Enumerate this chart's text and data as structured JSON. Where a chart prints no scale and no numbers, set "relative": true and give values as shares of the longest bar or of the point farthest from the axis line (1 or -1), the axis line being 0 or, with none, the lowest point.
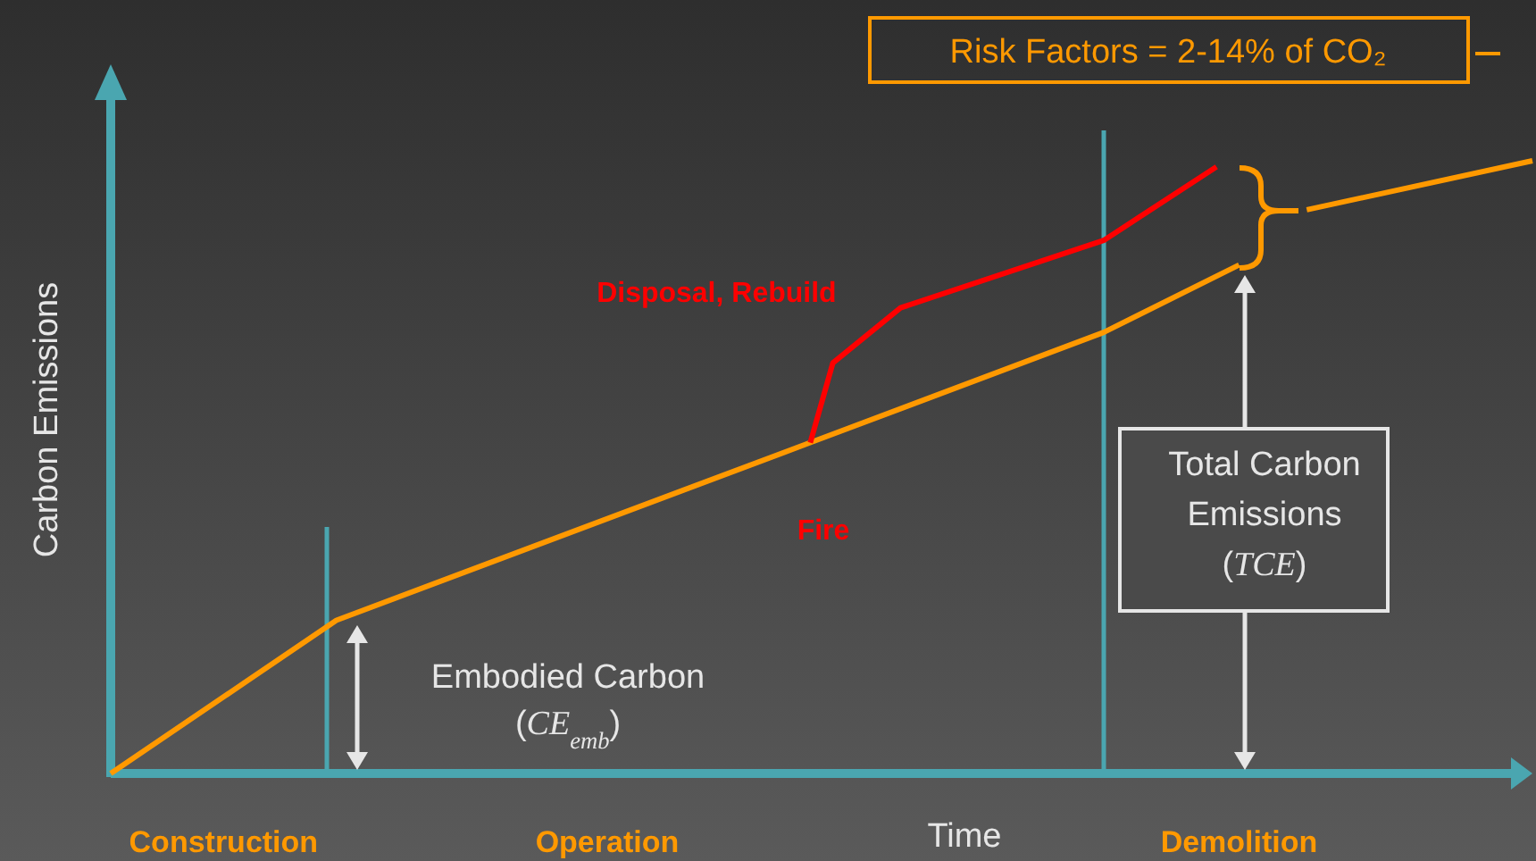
{
  "chart_data": {
    "type": "line",
    "relative": true,
    "xlabel": "Time",
    "ylabel": "Carbon Emissions",
    "categories": [
      null,
      null,
      null,
      null,
      null,
      "Construction",
      null,
      null,
      null,
      null,
      null,
      null,
      null,
      null,
      null,
      null,
      null,
      null,
      null,
      null,
      null,
      null,
      "Operation",
      null,
      null,
      null,
      null,
      null,
      null,
      null,
      null,
      null,
      null,
      null,
      null,
      null,
      null,
      null,
      null,
      null,
      null,
      null,
      null,
      null,
      null,
      null,
      null,
      null,
      null,
      null,
      "Demolition",
      null,
      null,
      null,
      null,
      null,
      null,
      null,
      null,
      null,
      null,
      null,
      null,
      null
    ],
    "series": [
      {
        "color": "#ff9900",
        "values": [
          0,
          null,
          null,
          null,
          null,
          null,
          null,
          null,
          null,
          null,
          0.25,
          null,
          null,
          null,
          null,
          null,
          null,
          null,
          null,
          null,
          null,
          null,
          null,
          null,
          null,
          null,
          null,
          null,
          null,
          null,
          null,
          0.54,
          null,
          null,
          null,
          null,
          null,
          null,
          null,
          null,
          null,
          null,
          null,
          null,
          0.72,
          null,
          null,
          null,
          null,
          null,
          0.83,
          null,
          null,
          null,
          null,
          null,
          null,
          null,
          null,
          null,
          null,
          null,
          null,
          null
        ]
      },
      {
        "name": "Disposal, Rebuild",
        "color": "#ff0000",
        "values": [
          null,
          null,
          null,
          null,
          null,
          null,
          null,
          null,
          null,
          null,
          null,
          null,
          null,
          null,
          null,
          null,
          null,
          null,
          null,
          null,
          null,
          null,
          null,
          null,
          null,
          null,
          null,
          null,
          null,
          null,
          null,
          0.54,
          0.67,
          null,
          null,
          0.76,
          null,
          null,
          null,
          null,
          null,
          null,
          null,
          null,
          0.87,
          null,
          null,
          null,
          null,
          0.99,
          null,
          null,
          null,
          null,
          null,
          null,
          null,
          null,
          null,
          null,
          null,
          null,
          null,
          null
        ]
      },
      {
        "color": "#ff9900",
        "values": [
          null,
          null,
          null,
          null,
          null,
          null,
          null,
          null,
          null,
          null,
          null,
          null,
          null,
          null,
          null,
          null,
          null,
          null,
          null,
          null,
          null,
          null,
          null,
          null,
          null,
          null,
          null,
          null,
          null,
          null,
          null,
          null,
          null,
          null,
          null,
          null,
          null,
          null,
          null,
          null,
          null,
          null,
          null,
          null,
          null,
          null,
          null,
          null,
          null,
          null,
          null,
          null,
          null,
          0.92,
          null,
          null,
          null,
          null,
          null,
          null,
          null,
          null,
          null,
          1.0
        ]
      }
    ],
    "annotations": [
      "Fire",
      "Embodied Carbon (CE$_{emb}$)",
      "Total Carbon Emissions (TCE)",
      "Risk Factors = 2-14% of CO₂"
    ]
  }
}
